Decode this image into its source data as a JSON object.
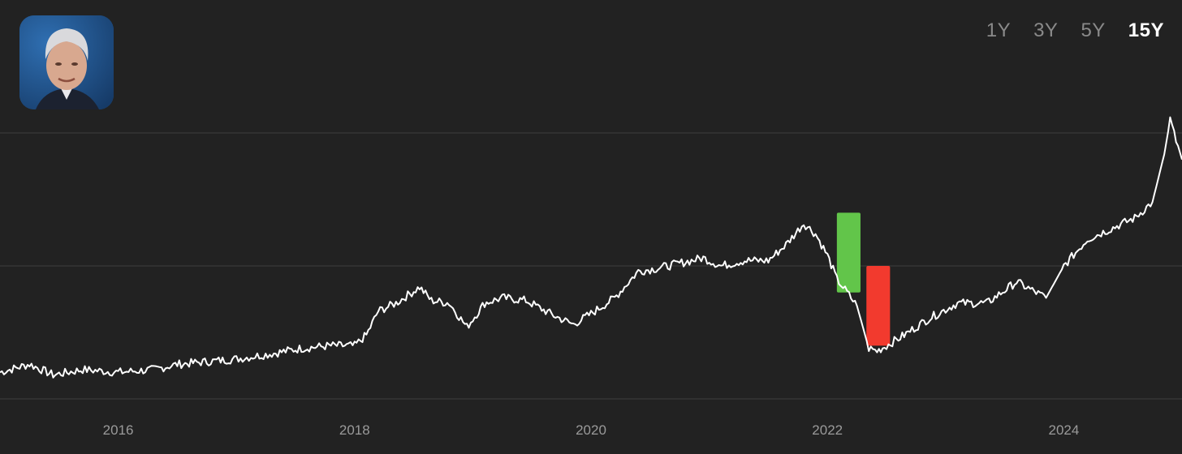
{
  "range_tabs": [
    {
      "label": "1Y",
      "active": false
    },
    {
      "label": "3Y",
      "active": false
    },
    {
      "label": "5Y",
      "active": false
    },
    {
      "label": "15Y",
      "active": true
    }
  ],
  "avatar_icon": "portrait-photo",
  "colors": {
    "background": "#222222",
    "line": "#ffffff",
    "gridline": "#3d3d3d",
    "gain_bar": "#62c54a",
    "loss_bar": "#f23a2e"
  },
  "chart_data": {
    "type": "line",
    "title": "",
    "xlabel": "",
    "ylabel": "",
    "xlim": [
      2015.0,
      2025.0
    ],
    "ylim": [
      0,
      100
    ],
    "x_ticks": [
      2016,
      2018,
      2020,
      2022,
      2024
    ],
    "gridlines_y": [
      0,
      50,
      100
    ],
    "legend": "none",
    "series": [
      {
        "x": [
          2015.0,
          2015.25,
          2015.45,
          2015.7,
          2016.0,
          2016.3,
          2016.5,
          2016.75,
          2017.0,
          2017.3,
          2017.55,
          2017.8,
          2018.0,
          2018.1,
          2018.2,
          2018.35,
          2018.55,
          2018.65,
          2018.8,
          2018.95,
          2019.1,
          2019.25,
          2019.45,
          2019.7,
          2019.85,
          2020.0,
          2020.2,
          2020.4,
          2020.55,
          2020.75,
          2020.95,
          2021.1,
          2021.3,
          2021.5,
          2021.65,
          2021.8,
          2021.9,
          2022.0,
          2022.08,
          2022.15,
          2022.25,
          2022.35,
          2022.42,
          2022.5,
          2022.65,
          2022.85,
          2023.1,
          2023.35,
          2023.6,
          2023.85,
          2024.0,
          2024.2,
          2024.4,
          2024.6,
          2024.75,
          2024.85,
          2024.9,
          2024.95,
          2025.0
        ],
        "y": [
          10,
          13,
          9,
          11,
          10,
          11,
          13,
          14,
          15,
          17,
          19,
          20,
          20,
          24,
          33,
          36,
          42,
          37,
          36,
          27,
          36,
          38,
          37,
          31,
          28,
          32,
          38,
          48,
          49,
          51,
          53,
          50,
          52,
          52,
          58,
          66,
          62,
          54,
          45,
          41,
          35,
          19,
          18,
          20,
          24,
          30,
          36,
          36,
          44,
          38,
          50,
          60,
          64,
          68,
          74,
          92,
          105,
          97,
          90
        ]
      }
    ],
    "annotation_bars": [
      {
        "name": "",
        "color": "gain",
        "x": 2022.08,
        "width": 0.2,
        "y_top": 70,
        "y_bottom": 40
      },
      {
        "name": "",
        "color": "loss",
        "x": 2022.33,
        "width": 0.2,
        "y_top": 50,
        "y_bottom": 20
      }
    ]
  }
}
